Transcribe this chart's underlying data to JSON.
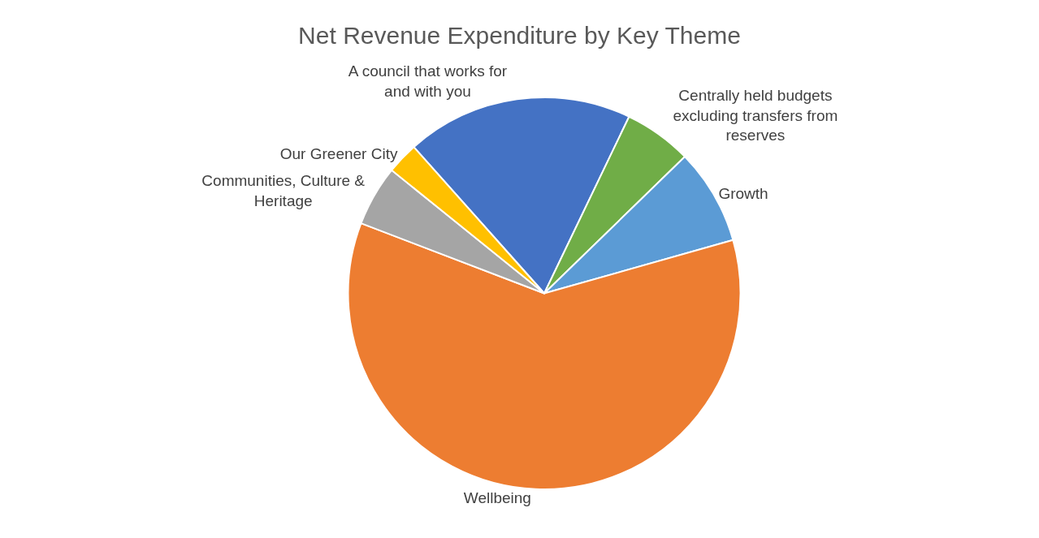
{
  "chart_data": {
    "type": "pie",
    "title": "Net Revenue Expenditure by Key Theme",
    "categories": [
      "A council that works for and with you",
      "Centrally held budgets excluding transfers from reserves",
      "Growth",
      "Wellbeing",
      "Communities, Culture & Heritage",
      "Our Greener City"
    ],
    "values": [
      18.7,
      5.6,
      7.9,
      60.2,
      5.0,
      2.6
    ],
    "colors": [
      "#4472c4",
      "#70ad47",
      "#5b9bd5",
      "#ed7d31",
      "#a5a5a5",
      "#ffc000"
    ],
    "legend": false
  }
}
